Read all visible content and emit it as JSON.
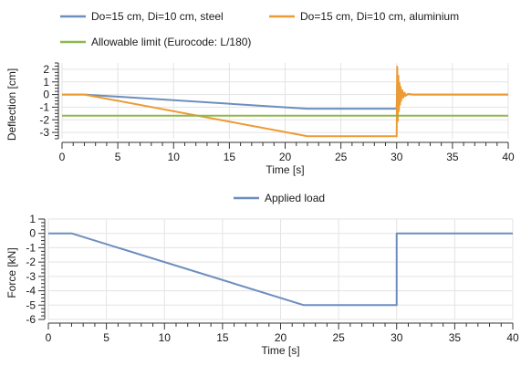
{
  "chart_data": [
    {
      "type": "line",
      "title": "",
      "xlabel": "Time [s]",
      "ylabel": "Deflection [cm]",
      "xlim": [
        0,
        40
      ],
      "ylim": [
        -3.5,
        2.5
      ],
      "x_ticks": [
        0,
        5,
        10,
        15,
        20,
        25,
        30,
        35,
        40
      ],
      "y_ticks": [
        2,
        1,
        0,
        -1,
        -2,
        -3
      ],
      "x_tick_labels": [
        "0",
        "5",
        "10",
        "15",
        "20",
        "25",
        "30",
        "35",
        "40"
      ],
      "y_tick_labels": [
        "2",
        "1",
        "0",
        "-1",
        "-2",
        "-3"
      ],
      "grid": true,
      "legend_position": "top",
      "series": [
        {
          "name": "Do=15 cm, Di=10 cm, steel",
          "color": "#6c8ebf",
          "x": [
            0,
            2,
            22,
            30,
            30.05,
            30.1,
            30.15,
            30.2,
            30.25,
            30.3,
            30.35,
            30.4,
            30.5,
            30.6,
            30.7,
            30.8,
            31,
            31.5,
            40
          ],
          "y": [
            0,
            0,
            -1.12,
            -1.12,
            0.8,
            -0.7,
            0.6,
            -0.5,
            0.45,
            -0.35,
            0.3,
            -0.25,
            0.2,
            -0.15,
            0.1,
            -0.08,
            0.03,
            0,
            0
          ]
        },
        {
          "name": "Do=15 cm, Di=10 cm, aluminium",
          "color": "#ed9b33",
          "x": [
            0,
            2,
            22,
            30,
            30.05,
            30.1,
            30.15,
            30.2,
            30.25,
            30.3,
            30.35,
            30.4,
            30.5,
            30.6,
            30.7,
            30.8,
            31,
            31.5,
            40
          ],
          "y": [
            0,
            0,
            -3.3,
            -3.3,
            2.2,
            -2.1,
            1.5,
            -1.3,
            0.9,
            -0.8,
            0.6,
            -0.5,
            0.35,
            -0.25,
            0.15,
            -0.1,
            0.05,
            0,
            0
          ]
        },
        {
          "name": "Allowable limit (Eurocode: L/180)",
          "color": "#8db84a",
          "x": [
            0,
            40
          ],
          "y": [
            -1.67,
            -1.67
          ]
        }
      ]
    },
    {
      "type": "line",
      "title": "",
      "xlabel": "Time [s]",
      "ylabel": "Force [kN]",
      "xlim": [
        0,
        40
      ],
      "ylim": [
        -6,
        1
      ],
      "x_ticks": [
        0,
        5,
        10,
        15,
        20,
        25,
        30,
        35,
        40
      ],
      "y_ticks": [
        1,
        0,
        -1,
        -2,
        -3,
        -4,
        -5,
        -6
      ],
      "x_tick_labels": [
        "0",
        "5",
        "10",
        "15",
        "20",
        "25",
        "30",
        "35",
        "40"
      ],
      "y_tick_labels": [
        "1",
        "0",
        "-1",
        "-2",
        "-3",
        "-4",
        "-5",
        "-6"
      ],
      "grid": true,
      "legend_position": "top",
      "series": [
        {
          "name": "Applied load",
          "color": "#6c8ebf",
          "x": [
            0,
            2,
            22,
            30,
            30,
            40
          ],
          "y": [
            0,
            0,
            -5,
            -5,
            0,
            0
          ]
        }
      ]
    }
  ]
}
